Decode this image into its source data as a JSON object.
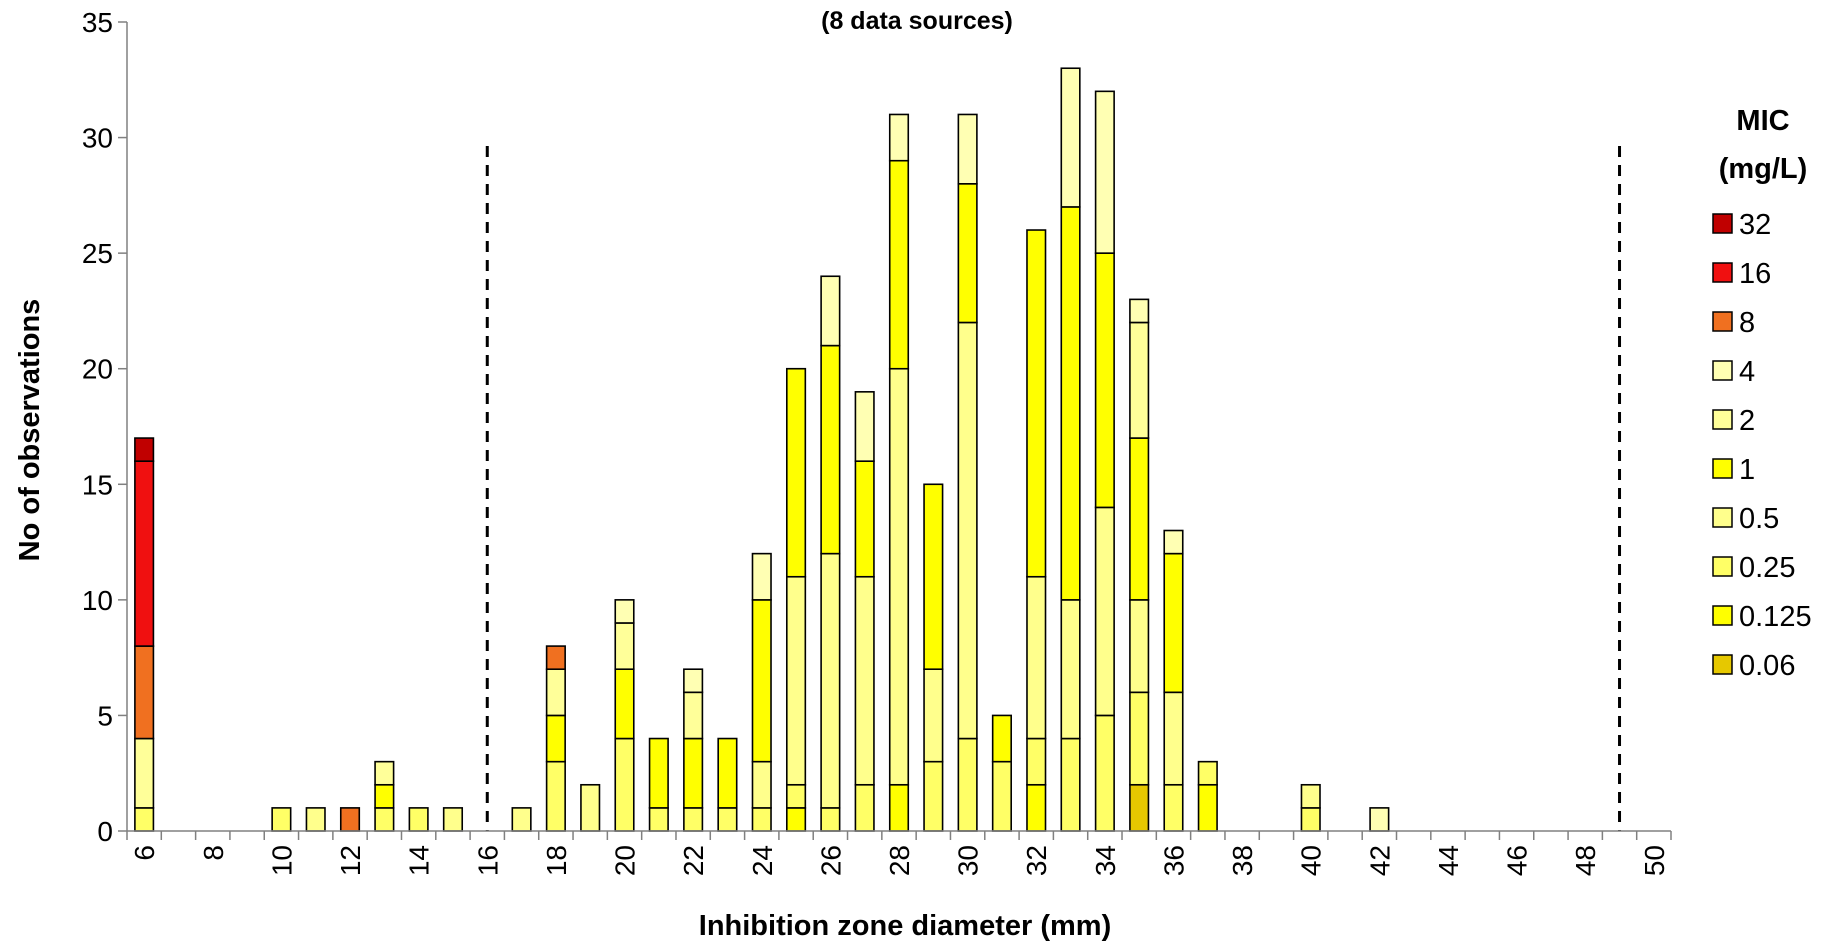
{
  "chart_data": {
    "type": "bar",
    "stacked": true,
    "title": "(8 data sources)",
    "xlabel": "Inhibition zone diameter (mm)",
    "ylabel": "No of observations",
    "ylim": [
      0,
      35
    ],
    "yticks": [
      0,
      5,
      10,
      15,
      20,
      25,
      30,
      35
    ],
    "xlim": [
      6,
      50
    ],
    "xtick_labels": [
      "6",
      "8",
      "10",
      "12",
      "14",
      "16",
      "18",
      "20",
      "22",
      "24",
      "26",
      "28",
      "30",
      "32",
      "34",
      "36",
      "38",
      "40",
      "42",
      "44",
      "46",
      "48",
      "50"
    ],
    "grid": false,
    "legend_position": "right",
    "legend_title": [
      "MIC",
      "(mg/L)"
    ],
    "reference_lines_x": [
      16.5,
      49.5
    ],
    "series": [
      {
        "name": "0.06",
        "color": "#E6C800",
        "x": [
          35
        ],
        "values": [
          2
        ]
      },
      {
        "name": "0.125",
        "color": "#FFFF00",
        "x": [
          25,
          28,
          32,
          37
        ],
        "values": [
          1,
          2,
          2,
          2
        ]
      },
      {
        "name": "0.25",
        "color": "#FFFF66",
        "x": [
          6,
          10,
          13,
          14,
          18,
          20,
          21,
          22,
          23,
          24,
          25,
          26,
          27,
          29,
          30,
          31,
          32,
          33,
          34,
          35,
          36,
          37,
          40
        ],
        "values": [
          1,
          1,
          1,
          1,
          3,
          4,
          1,
          1,
          1,
          1,
          1,
          1,
          2,
          3,
          4,
          3,
          2,
          4,
          5,
          4,
          2,
          1,
          1
        ]
      },
      {
        "name": "0.5",
        "color": "#FFFF8C",
        "x": [
          11,
          15,
          17,
          19,
          24,
          25,
          26,
          27,
          28,
          29,
          30,
          32,
          33,
          34,
          35,
          36,
          40
        ],
        "values": [
          1,
          1,
          1,
          2,
          2,
          9,
          11,
          9,
          18,
          4,
          18,
          7,
          6,
          9,
          4,
          4,
          1
        ]
      },
      {
        "name": "1",
        "color": "#FFFF00",
        "x": [
          13,
          18,
          20,
          21,
          22,
          23,
          24,
          25,
          26,
          27,
          28,
          29,
          30,
          31,
          32,
          33,
          34,
          35,
          36
        ],
        "values": [
          1,
          2,
          3,
          3,
          3,
          3,
          7,
          9,
          9,
          5,
          9,
          8,
          6,
          2,
          15,
          17,
          11,
          7,
          6
        ]
      },
      {
        "name": "2",
        "color": "#FFFF99",
        "x": [
          6,
          13,
          18,
          20,
          22,
          35
        ],
        "values": [
          3,
          1,
          2,
          2,
          2,
          5
        ]
      },
      {
        "name": "4",
        "color": "#FFFFB3",
        "x": [
          20,
          22,
          24,
          26,
          27,
          28,
          30,
          33,
          34,
          35,
          36,
          42
        ],
        "values": [
          1,
          1,
          2,
          3,
          3,
          2,
          3,
          6,
          7,
          1,
          1,
          1
        ]
      },
      {
        "name": "8",
        "color": "#F07020",
        "x": [
          6,
          12,
          18
        ],
        "values": [
          4,
          1,
          1
        ]
      },
      {
        "name": "16",
        "color": "#F01010",
        "x": [
          6
        ],
        "values": [
          8
        ]
      },
      {
        "name": "32",
        "color": "#C00000",
        "x": [
          6
        ],
        "values": [
          1
        ]
      }
    ]
  }
}
